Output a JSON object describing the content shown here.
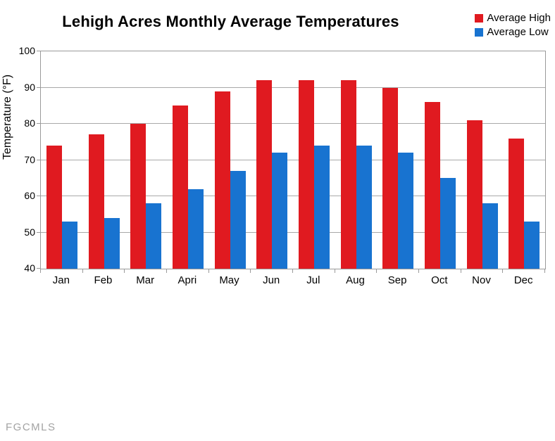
{
  "title": "Lehigh Acres Monthly Average Temperatures",
  "watermark": "FGCMLS",
  "colors": {
    "high": "#e01a20",
    "low": "#1873d0",
    "grid": "#a8a8a8",
    "axis": "#9a9a9a",
    "watermark": "#a3a3a3"
  },
  "chart_data": {
    "type": "bar",
    "title": "Lehigh Acres Monthly Average Temperatures",
    "categories": [
      "Jan",
      "Feb",
      "Mar",
      "Apri",
      "May",
      "Jun",
      "Jul",
      "Aug",
      "Sep",
      "Oct",
      "Nov",
      "Dec"
    ],
    "series": [
      {
        "name": "Average High",
        "color": "#e01a20",
        "values": [
          74,
          77,
          80,
          85,
          89,
          92,
          92,
          92,
          90,
          86,
          81,
          76
        ]
      },
      {
        "name": "Average Low",
        "color": "#1873d0",
        "values": [
          53,
          54,
          58,
          62,
          67,
          72,
          74,
          74,
          72,
          65,
          58,
          53
        ]
      }
    ],
    "xlabel": "",
    "ylabel": "Temperature (°F)",
    "ylim": [
      40,
      100
    ],
    "ytick_step": 10,
    "grid": true,
    "legend_position": "top-right"
  }
}
